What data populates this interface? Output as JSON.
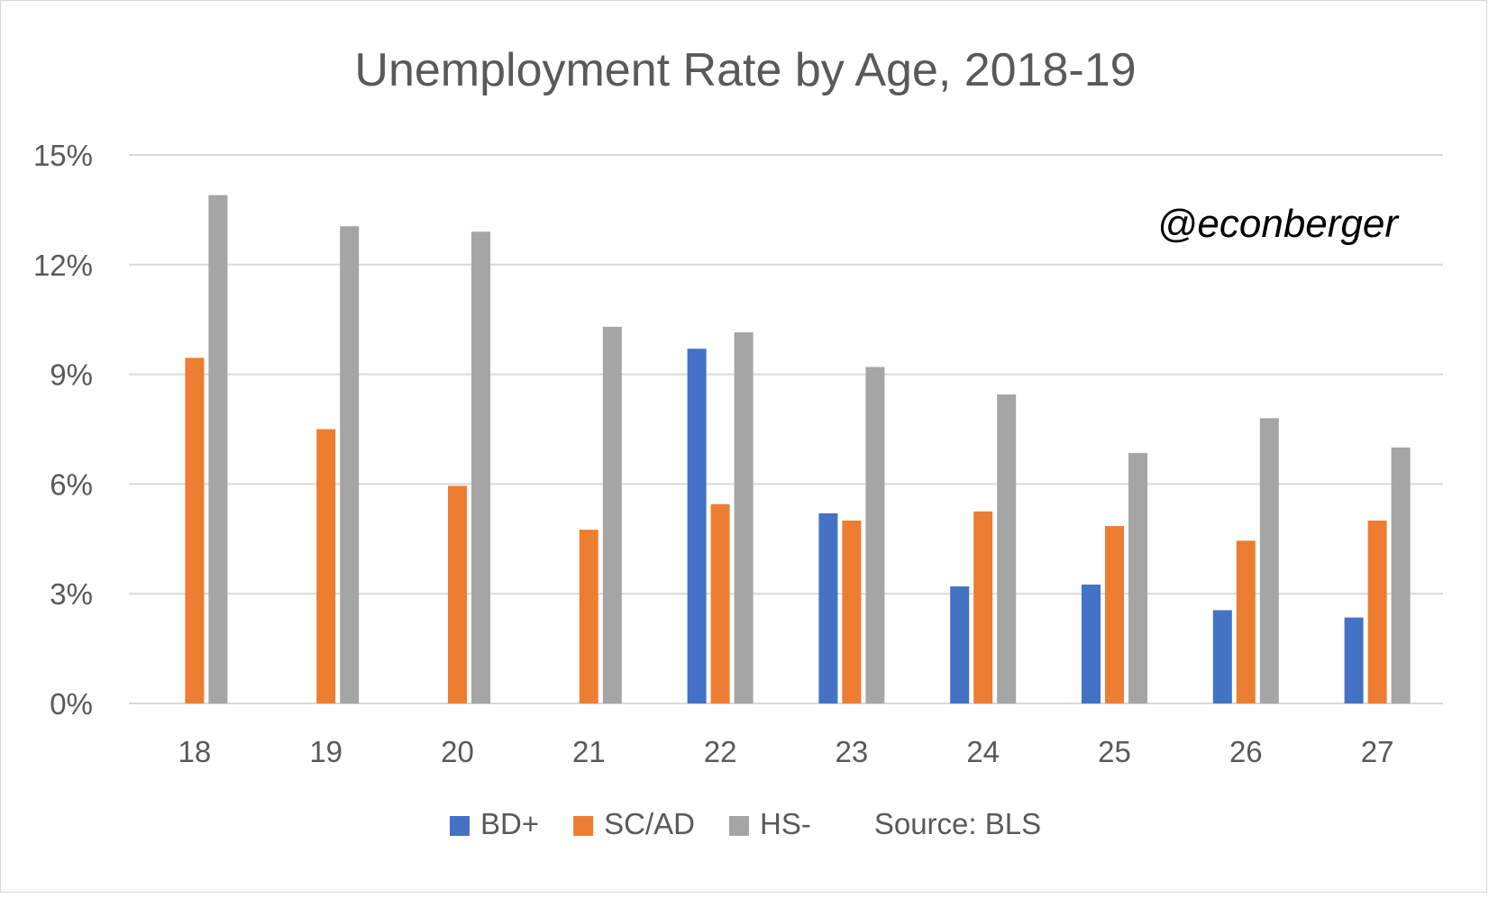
{
  "chart_data": {
    "type": "bar",
    "title": "Unemployment Rate by Age, 2018-19",
    "watermark": "@econberger",
    "xlabel": "",
    "ylabel": "",
    "categories": [
      "18",
      "19",
      "20",
      "21",
      "22",
      "23",
      "24",
      "25",
      "26",
      "27"
    ],
    "series": [
      {
        "name": "BD+",
        "color": "#4472C4",
        "values": [
          null,
          null,
          null,
          null,
          9.7,
          5.2,
          3.2,
          3.25,
          2.55,
          2.35
        ]
      },
      {
        "name": "SC/AD",
        "color": "#ED7D31",
        "values": [
          9.45,
          7.5,
          5.95,
          4.75,
          5.45,
          5.0,
          5.25,
          4.85,
          4.45,
          5.0
        ]
      },
      {
        "name": "HS-",
        "color": "#A5A5A5",
        "values": [
          13.9,
          13.05,
          12.9,
          10.3,
          10.15,
          9.2,
          8.45,
          6.85,
          7.8,
          7.0
        ]
      }
    ],
    "ylim": [
      0,
      15
    ],
    "yticks": [
      0,
      3,
      6,
      9,
      12,
      15
    ],
    "ytick_labels": [
      "0%",
      "3%",
      "6%",
      "9%",
      "12%",
      "15%"
    ],
    "grid": true,
    "legend_position": "bottom",
    "source_note": "Source: BLS"
  }
}
